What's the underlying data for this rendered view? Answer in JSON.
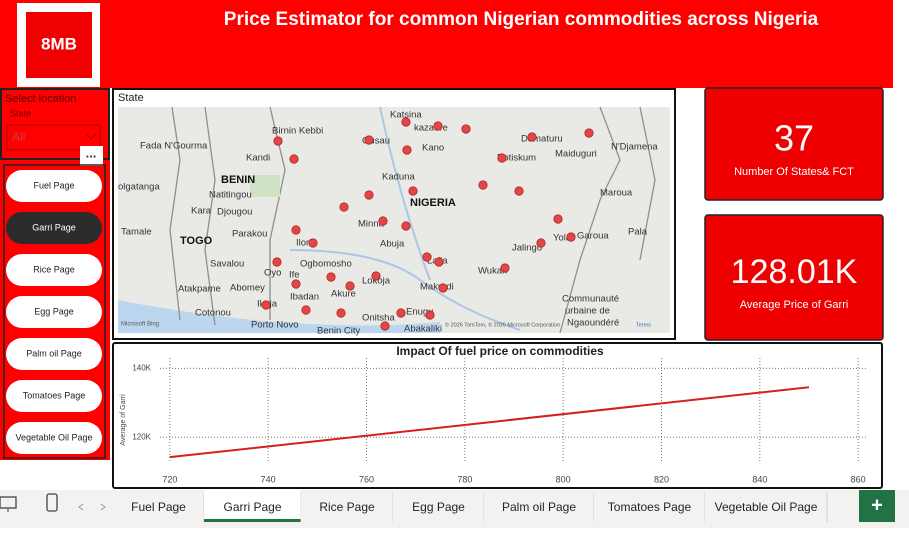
{
  "header": {
    "logo": "8MB",
    "title": "Price Estimator for common Nigerian commodities across Nigeria"
  },
  "sidebar": {
    "select_label": "Select location",
    "field_label": "State",
    "dropdown_value": "All",
    "more": "...",
    "buttons": [
      "Fuel Page",
      "Garri Page",
      "Rice Page",
      "Egg Page",
      "Palm oil Page",
      "Tomatoes Page",
      "Vegetable Oil Page"
    ],
    "active": 1
  },
  "map": {
    "title": "State",
    "labels": [
      "Birnin Kebbi",
      "Katsina",
      "kazaure",
      "Damaturu",
      "Maiduguri",
      "N'Djamena",
      "Fada N'Gourma",
      "Gusau",
      "Kano",
      "Potiskum",
      "Kandi",
      "BENIN",
      "Natitingou",
      "olgatanga",
      "Kaduna",
      "Maroua",
      "Kara",
      "Djougou",
      "NIGERIA",
      "Garoua",
      "Tamale",
      "Minna",
      "Jalingo",
      "Yola",
      "TOGO",
      "Parakou",
      "Ilorin",
      "Abuja",
      "Pala",
      "Savalou",
      "Oyo",
      "Ogbomosho",
      "Ife",
      "Lafia",
      "Wukari",
      "Abomey",
      "Lokoja",
      "Makurdi",
      "Atakpame",
      "Ibadan",
      "Akure",
      "Communauté",
      "urbaine de",
      "Ngaoundéré",
      "Cotonou",
      "Ikeja",
      "Porto Novo",
      "Onitsha",
      "Enugu",
      "Benin City",
      "Abakaliki"
    ],
    "bold": [
      "BENIN",
      "NIGERIA",
      "TOGO"
    ],
    "provider": "Microsoft Bing",
    "attribution": "© 2026 TomTom, © 2026 Microsoft Corporation",
    "terms": "Terms"
  },
  "cards": [
    {
      "value": "37",
      "label": "Number Of States& FCT"
    },
    {
      "value": "128.01K",
      "label": "Average Price of Garri"
    }
  ],
  "chart_data": {
    "type": "line",
    "title": "Impact Of fuel price on commodities",
    "y_label": "Average of Garri",
    "x": [
      720,
      850
    ],
    "series": [
      {
        "name": "Average of Garri",
        "color": "#d61f1f",
        "values": [
          114200,
          134500
        ]
      }
    ],
    "xlim": [
      718,
      862
    ],
    "xticks": [
      720,
      740,
      760,
      780,
      800,
      820,
      840,
      860
    ],
    "ylim": [
      112800,
      143000
    ],
    "yticks": [
      {
        "value": 120000,
        "label": "120K"
      },
      {
        "value": 140000,
        "label": "140K"
      }
    ],
    "grid": true
  },
  "tabs": {
    "items": [
      "Fuel Page",
      "Garri Page",
      "Rice Page",
      "Egg Page",
      "Palm oil Page",
      "Tomatoes Page",
      "Vegetable Oil Page"
    ],
    "active": 1,
    "add": "+"
  }
}
